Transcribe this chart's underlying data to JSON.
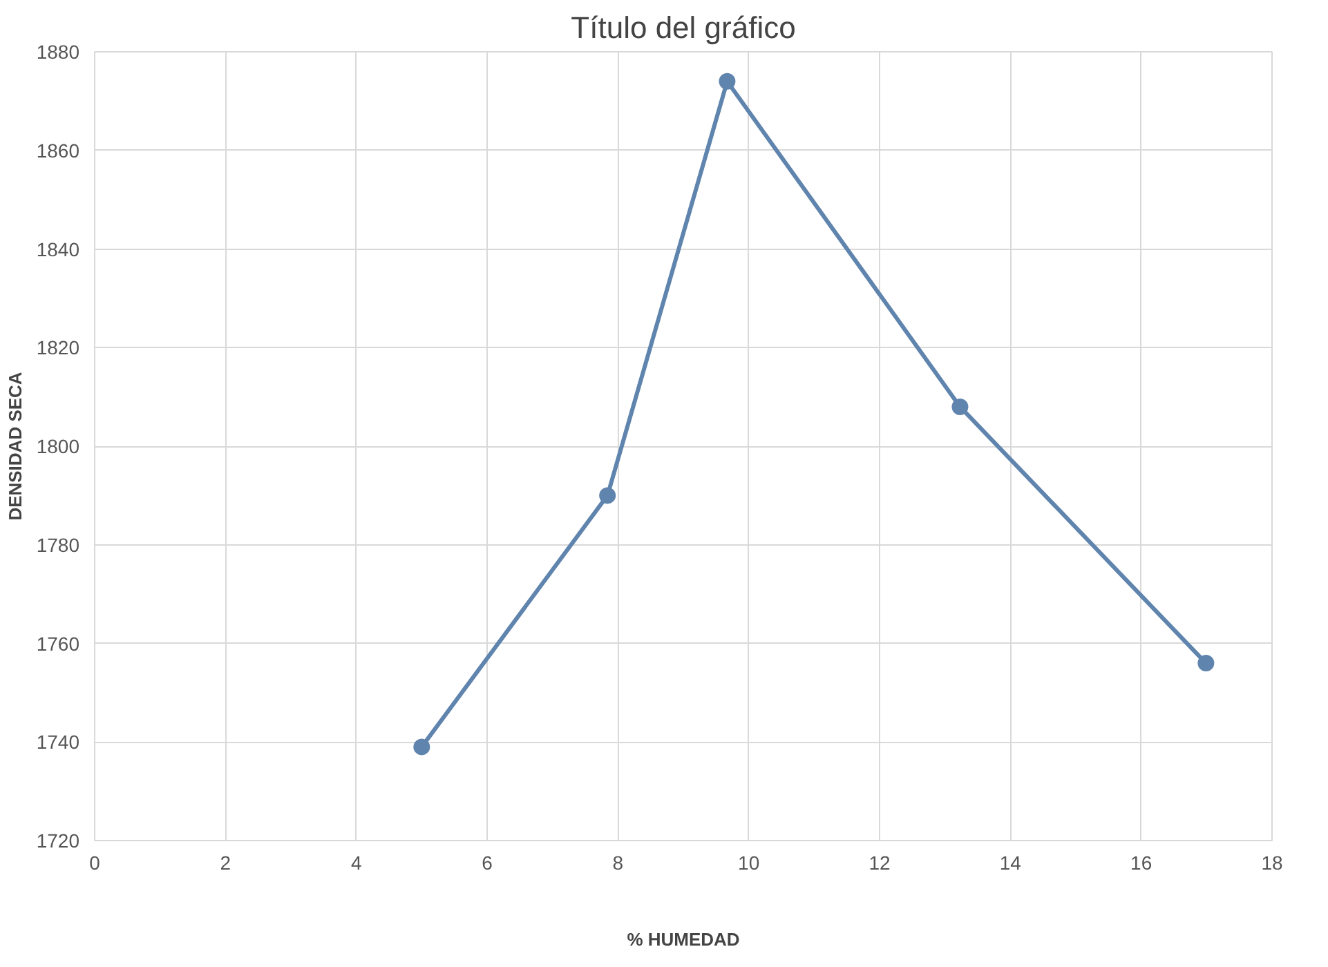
{
  "chart_data": {
    "type": "line",
    "title": "Título del gráfico",
    "xlabel": "% HUMEDAD",
    "ylabel": "DENSIDAD SECA",
    "x": [
      5.0,
      7.84,
      9.67,
      13.23,
      16.99
    ],
    "series": [
      {
        "color": "#5f84ad",
        "values": [
          1739,
          1790,
          1874,
          1808,
          1756
        ]
      }
    ],
    "xlim": [
      0,
      18
    ],
    "xticks": [
      0,
      2,
      4,
      6,
      8,
      10,
      12,
      14,
      16,
      18
    ],
    "ylim": [
      1720,
      1880
    ],
    "yticks": [
      1720,
      1740,
      1760,
      1780,
      1800,
      1820,
      1840,
      1860,
      1880
    ],
    "grid": true,
    "marker": "circle",
    "line_style": "solid"
  }
}
